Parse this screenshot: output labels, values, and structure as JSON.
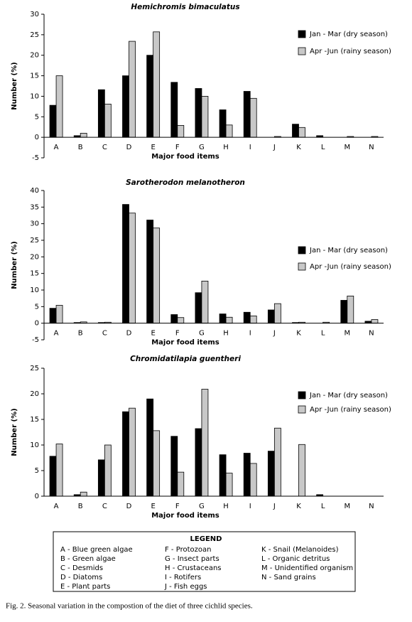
{
  "chart_data": [
    {
      "type": "bar",
      "title": "Hemichromis bimaculatus",
      "xlabel": "Major food items",
      "ylabel": "Number (%)",
      "categories": [
        "A",
        "B",
        "C",
        "D",
        "E",
        "F",
        "G",
        "H",
        "I",
        "J",
        "K",
        "L",
        "M",
        "N"
      ],
      "series": [
        {
          "name": "Jan - Mar (dry season)",
          "color": "#000000",
          "values": [
            7.8,
            0.4,
            11.6,
            15,
            20,
            13.4,
            11.9,
            6.7,
            11.2,
            0,
            3.2,
            0.4,
            0,
            0
          ]
        },
        {
          "name": "Apr -Jun (rainy season)",
          "color": "#c8c8c8",
          "values": [
            15,
            1,
            8.1,
            23.4,
            25.7,
            2.9,
            10,
            3,
            9.5,
            0.2,
            2.4,
            0,
            0.2,
            0.2
          ]
        }
      ],
      "ylim": [
        -5,
        30
      ],
      "yticks": [
        -5,
        0,
        5,
        10,
        15,
        20,
        25,
        30
      ]
    },
    {
      "type": "bar",
      "title": "Sarotherodon melanotheron",
      "xlabel": "Major food items",
      "ylabel": "Number (%)",
      "categories": [
        "A",
        "B",
        "C",
        "D",
        "E",
        "F",
        "G",
        "H",
        "I",
        "J",
        "K",
        "L",
        "M",
        "N"
      ],
      "series": [
        {
          "name": "Jan - Mar (dry season)",
          "color": "#000000",
          "values": [
            4.5,
            0.2,
            0.2,
            35.8,
            31.1,
            2.6,
            9.2,
            2.8,
            3.3,
            4,
            0.2,
            0,
            6.9,
            0.6
          ]
        },
        {
          "name": "Apr -Jun (rainy season)",
          "color": "#c8c8c8",
          "values": [
            5.4,
            0.4,
            0.3,
            33.2,
            28.7,
            1.7,
            12.7,
            1.8,
            2.2,
            5.9,
            0.3,
            0.3,
            8.2,
            1.1
          ]
        }
      ],
      "ylim": [
        -5,
        40
      ],
      "yticks": [
        -5,
        0,
        5,
        10,
        15,
        20,
        25,
        30,
        35,
        40
      ]
    },
    {
      "type": "bar",
      "title": "Chromidatilapia guentheri",
      "xlabel": "Major food items",
      "ylabel": "Number (%)",
      "categories": [
        "A",
        "B",
        "C",
        "D",
        "E",
        "F",
        "G",
        "H",
        "I",
        "J",
        "K",
        "L",
        "M",
        "N"
      ],
      "series": [
        {
          "name": "Jan - Mar (dry season)",
          "color": "#000000",
          "values": [
            7.8,
            0.3,
            7.1,
            16.5,
            19,
            11.7,
            13.2,
            8.1,
            8.4,
            8.8,
            0,
            0.3,
            0,
            0
          ]
        },
        {
          "name": "Apr -Jun (rainy season)",
          "color": "#c8c8c8",
          "values": [
            10.2,
            0.8,
            10,
            17.2,
            12.8,
            4.7,
            20.9,
            4.5,
            6.4,
            13.3,
            10.1,
            0,
            0,
            0
          ]
        }
      ],
      "ylim": [
        0,
        25
      ],
      "yticks": [
        0,
        5,
        10,
        15,
        20,
        25
      ]
    }
  ],
  "legend": {
    "title": "LEGEND",
    "items": [
      "A - Blue green algae",
      "B - Green algae",
      "C - Desmids",
      "D - Diatoms",
      "E - Plant parts",
      "F - Protozoan",
      "G - Insect parts",
      "H - Crustaceans",
      "I - Rotifers",
      "J - Fish eggs",
      "K - Snail (Melanoides)",
      "L - Organic detritus",
      "M - Unidentified organism",
      "N - Sand grains"
    ]
  },
  "caption": "Fig. 2. Seasonal variation in the compostion of the diet of three cichlid species."
}
